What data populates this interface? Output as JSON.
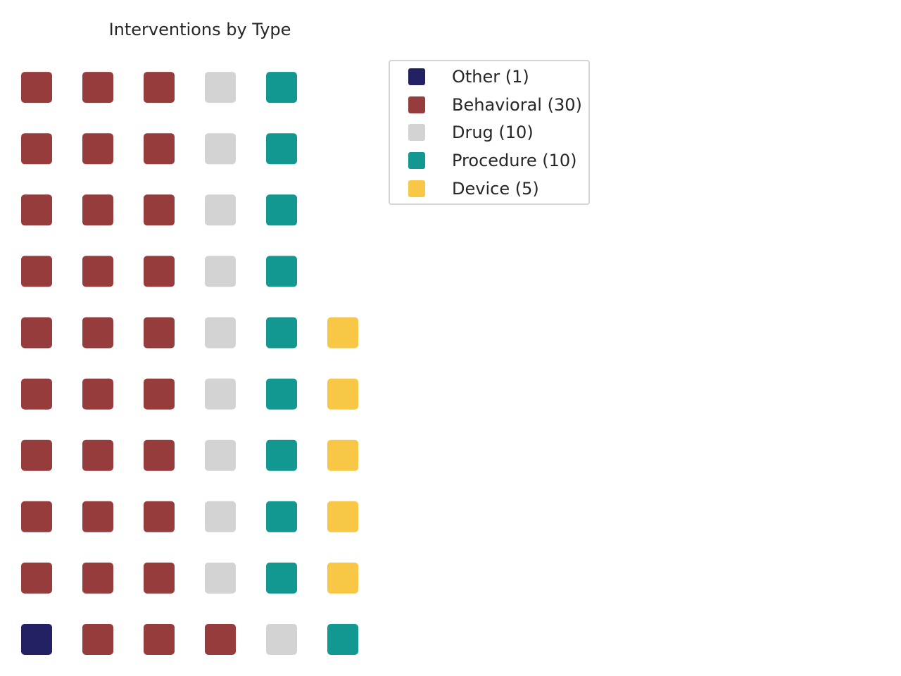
{
  "chart_data": {
    "type": "waffle",
    "title": "Interventions by Type",
    "rows": 10,
    "fill_order": "column-wise from bottom-left, bottom to top",
    "legend_position": "upper-right of grid",
    "categories": [
      {
        "name": "Other",
        "value": 1,
        "color": "#231f63",
        "label": "Other (1)"
      },
      {
        "name": "Behavioral",
        "value": 30,
        "color": "#973c3d",
        "label": "Behavioral (30)"
      },
      {
        "name": "Drug",
        "value": 10,
        "color": "#d3d3d3",
        "label": "Drug (10)"
      },
      {
        "name": "Procedure",
        "value": 10,
        "color": "#129791",
        "label": "Procedure (10)"
      },
      {
        "name": "Device",
        "value": 5,
        "color": "#f9c746",
        "label": "Device (5)"
      }
    ]
  }
}
